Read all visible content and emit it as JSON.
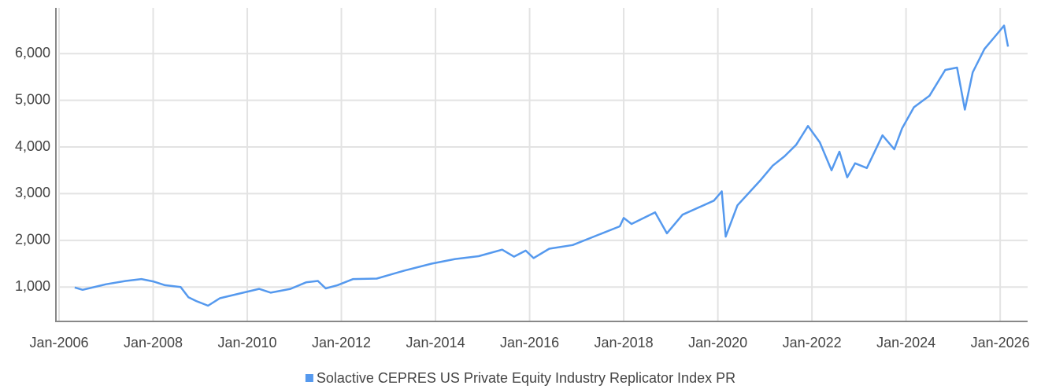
{
  "chart_data": {
    "type": "line",
    "x": [
      "2006-05",
      "2006-07",
      "2007-01",
      "2007-06",
      "2007-10",
      "2008-01",
      "2008-04",
      "2008-08",
      "2008-10",
      "2008-12",
      "2009-03",
      "2009-06",
      "2009-12",
      "2010-04",
      "2010-07",
      "2010-12",
      "2011-04",
      "2011-07",
      "2011-09",
      "2011-12",
      "2012-04",
      "2012-10",
      "2013-05",
      "2013-12",
      "2014-06",
      "2014-12",
      "2015-06",
      "2015-09",
      "2015-12",
      "2016-02",
      "2016-06",
      "2016-12",
      "2017-06",
      "2017-12",
      "2018-01",
      "2018-03",
      "2018-09",
      "2018-12",
      "2019-04",
      "2019-12",
      "2020-02",
      "2020-03",
      "2020-06",
      "2020-12",
      "2021-03",
      "2021-06",
      "2021-09",
      "2021-12",
      "2022-03",
      "2022-06",
      "2022-08",
      "2022-10",
      "2022-12",
      "2023-03",
      "2023-07",
      "2023-10",
      "2023-12",
      "2024-03",
      "2024-07",
      "2024-11",
      "2025-02",
      "2025-04",
      "2025-06",
      "2025-09",
      "2025-12",
      "2026-02",
      "2026-03"
    ],
    "series": [
      {
        "name": "Solactive CEPRES US Private Equity Industry Replicator Index PR",
        "color": "#5599ee",
        "values": [
          990,
          940,
          1060,
          1130,
          1170,
          1120,
          1040,
          1000,
          780,
          700,
          600,
          760,
          880,
          960,
          880,
          960,
          1100,
          1130,
          970,
          1040,
          1170,
          1180,
          1350,
          1500,
          1600,
          1660,
          1800,
          1650,
          1780,
          1620,
          1820,
          1900,
          2100,
          2300,
          2480,
          2350,
          2600,
          2150,
          2550,
          2850,
          3050,
          2080,
          2750,
          3300,
          3600,
          3800,
          4050,
          4450,
          4100,
          3500,
          3900,
          3350,
          3650,
          3550,
          4250,
          3950,
          4400,
          4850,
          5100,
          5650,
          5700,
          4800,
          5600,
          6100,
          6400,
          6600,
          6150
        ]
      }
    ],
    "xlim": [
      "2006-01",
      "2026-08"
    ],
    "xticks": [
      {
        "value": "2006-01",
        "label": "Jan-2006"
      },
      {
        "value": "2008-01",
        "label": "Jan-2008"
      },
      {
        "value": "2010-01",
        "label": "Jan-2010"
      },
      {
        "value": "2012-01",
        "label": "Jan-2012"
      },
      {
        "value": "2014-01",
        "label": "Jan-2014"
      },
      {
        "value": "2016-01",
        "label": "Jan-2016"
      },
      {
        "value": "2018-01",
        "label": "Jan-2018"
      },
      {
        "value": "2020-01",
        "label": "Jan-2020"
      },
      {
        "value": "2022-01",
        "label": "Jan-2022"
      },
      {
        "value": "2024-01",
        "label": "Jan-2024"
      },
      {
        "value": "2026-01",
        "label": "Jan-2026"
      }
    ],
    "ylim": [
      280,
      6980
    ],
    "yticks": [
      {
        "value": 1000,
        "label": "1,000"
      },
      {
        "value": 2000,
        "label": "2,000"
      },
      {
        "value": 3000,
        "label": "3,000"
      },
      {
        "value": 4000,
        "label": "4,000"
      },
      {
        "value": 5000,
        "label": "5,000"
      },
      {
        "value": 6000,
        "label": "6,000"
      }
    ],
    "grid": true,
    "legend": "bottom"
  }
}
